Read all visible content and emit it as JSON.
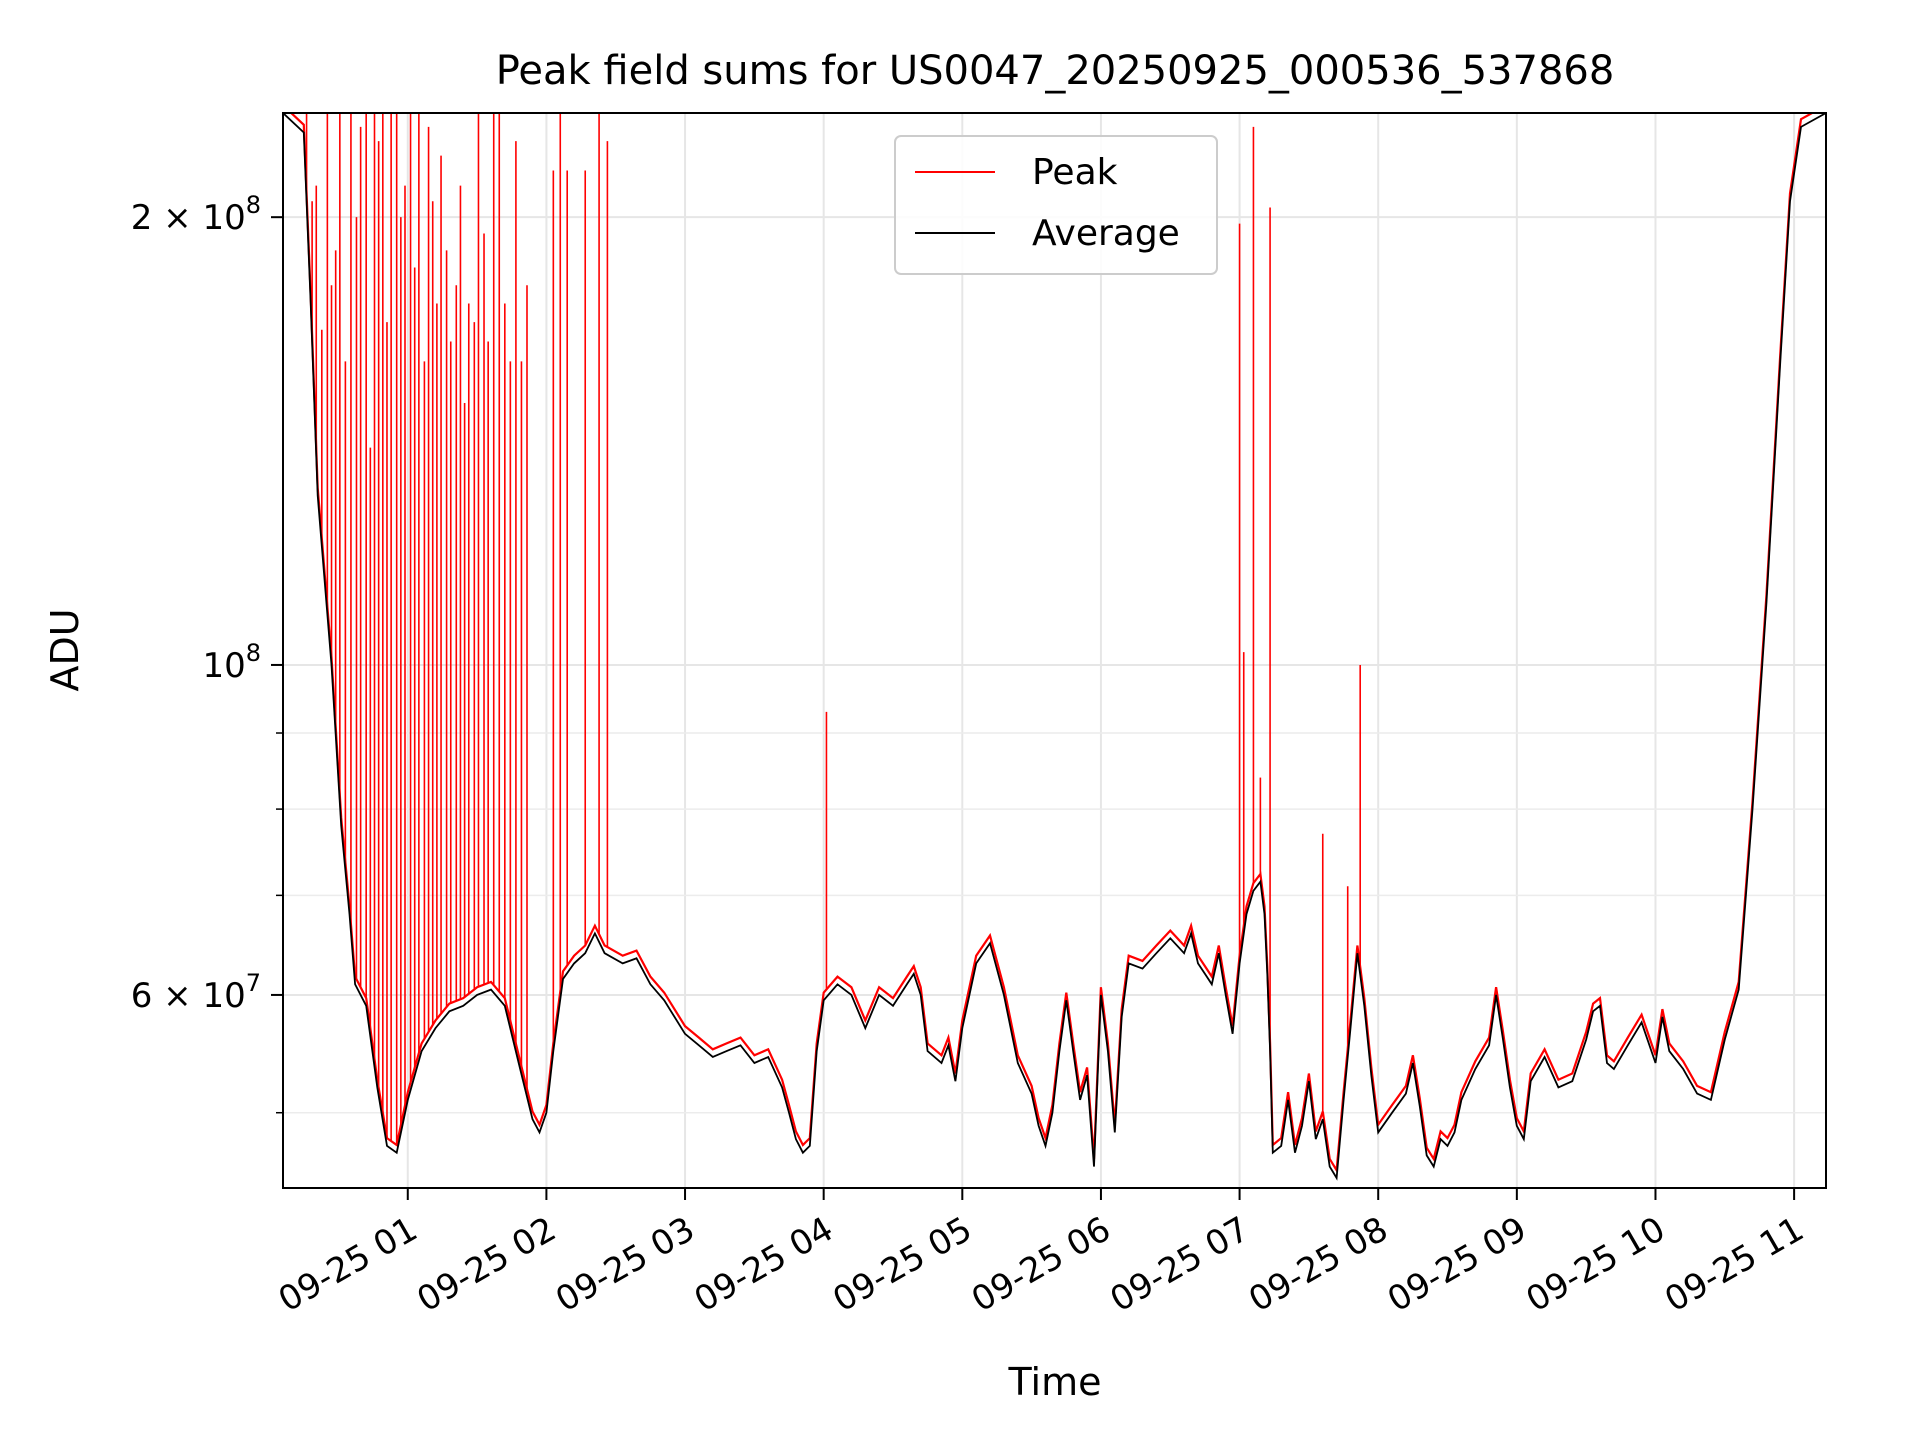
{
  "chart_data": {
    "type": "line",
    "title": "Peak field sums for US0047_20250925_000536_537868",
    "xlabel": "Time",
    "ylabel": "ADU",
    "yscale": "log",
    "ylim": [
      44500000,
      235000000
    ],
    "xlim_hours": [
      0.1,
      11.23
    ],
    "grid": true,
    "legend_position": "upper-center",
    "x_ticks": [
      {
        "hour": 1,
        "label": "09-25 01"
      },
      {
        "hour": 2,
        "label": "09-25 02"
      },
      {
        "hour": 3,
        "label": "09-25 03"
      },
      {
        "hour": 4,
        "label": "09-25 04"
      },
      {
        "hour": 5,
        "label": "09-25 05"
      },
      {
        "hour": 6,
        "label": "09-25 06"
      },
      {
        "hour": 7,
        "label": "09-25 07"
      },
      {
        "hour": 8,
        "label": "09-25 08"
      },
      {
        "hour": 9,
        "label": "09-25 09"
      },
      {
        "hour": 10,
        "label": "09-25 10"
      },
      {
        "hour": 11,
        "label": "09-25 11"
      }
    ],
    "y_major_ticks": [
      {
        "value": 60000000,
        "mantissa": "6",
        "exponent": "7"
      },
      {
        "value": 100000000,
        "mantissa": "",
        "exponent": "8"
      },
      {
        "value": 200000000,
        "mantissa": "2",
        "exponent": "8"
      }
    ],
    "y_minor_ticks": [
      50000000,
      70000000,
      80000000,
      90000000
    ],
    "series": [
      {
        "name": "Average",
        "color": "#000000",
        "points": [
          [
            0.1,
            235000000
          ],
          [
            0.25,
            228000000
          ],
          [
            0.3,
            175000000
          ],
          [
            0.35,
            130000000
          ],
          [
            0.45,
            100000000
          ],
          [
            0.52,
            78000000
          ],
          [
            0.58,
            68000000
          ],
          [
            0.62,
            61000000
          ],
          [
            0.7,
            59000000
          ],
          [
            0.78,
            52000000
          ],
          [
            0.85,
            47500000
          ],
          [
            0.92,
            47000000
          ],
          [
            1.0,
            51000000
          ],
          [
            1.1,
            55000000
          ],
          [
            1.2,
            57000000
          ],
          [
            1.3,
            58500000
          ],
          [
            1.4,
            59000000
          ],
          [
            1.5,
            60000000
          ],
          [
            1.6,
            60500000
          ],
          [
            1.7,
            59000000
          ],
          [
            1.8,
            54000000
          ],
          [
            1.9,
            49500000
          ],
          [
            1.95,
            48500000
          ],
          [
            2.0,
            50000000
          ],
          [
            2.05,
            55000000
          ],
          [
            2.12,
            61500000
          ],
          [
            2.2,
            63000000
          ],
          [
            2.28,
            64000000
          ],
          [
            2.35,
            66000000
          ],
          [
            2.42,
            64000000
          ],
          [
            2.55,
            63000000
          ],
          [
            2.65,
            63500000
          ],
          [
            2.75,
            61000000
          ],
          [
            2.85,
            59500000
          ],
          [
            3.0,
            56500000
          ],
          [
            3.1,
            55500000
          ],
          [
            3.2,
            54500000
          ],
          [
            3.3,
            55000000
          ],
          [
            3.4,
            55500000
          ],
          [
            3.5,
            54000000
          ],
          [
            3.6,
            54500000
          ],
          [
            3.7,
            52000000
          ],
          [
            3.75,
            50000000
          ],
          [
            3.8,
            48000000
          ],
          [
            3.85,
            47000000
          ],
          [
            3.9,
            47500000
          ],
          [
            3.95,
            55000000
          ],
          [
            4.0,
            59500000
          ],
          [
            4.1,
            61000000
          ],
          [
            4.2,
            60000000
          ],
          [
            4.3,
            57000000
          ],
          [
            4.4,
            60000000
          ],
          [
            4.5,
            59000000
          ],
          [
            4.6,
            61000000
          ],
          [
            4.65,
            62000000
          ],
          [
            4.7,
            60000000
          ],
          [
            4.75,
            55000000
          ],
          [
            4.85,
            54000000
          ],
          [
            4.9,
            55500000
          ],
          [
            4.95,
            52500000
          ],
          [
            5.0,
            57000000
          ],
          [
            5.1,
            63000000
          ],
          [
            5.2,
            65000000
          ],
          [
            5.3,
            60000000
          ],
          [
            5.4,
            54000000
          ],
          [
            5.5,
            51500000
          ],
          [
            5.55,
            49000000
          ],
          [
            5.6,
            47500000
          ],
          [
            5.65,
            50000000
          ],
          [
            5.7,
            55000000
          ],
          [
            5.75,
            59500000
          ],
          [
            5.8,
            55000000
          ],
          [
            5.85,
            51000000
          ],
          [
            5.9,
            53000000
          ],
          [
            5.95,
            46000000
          ],
          [
            6.0,
            60000000
          ],
          [
            6.05,
            55000000
          ],
          [
            6.1,
            48500000
          ],
          [
            6.15,
            58000000
          ],
          [
            6.2,
            63000000
          ],
          [
            6.3,
            62500000
          ],
          [
            6.4,
            64000000
          ],
          [
            6.5,
            65500000
          ],
          [
            6.6,
            64000000
          ],
          [
            6.65,
            66000000
          ],
          [
            6.7,
            63000000
          ],
          [
            6.75,
            62000000
          ],
          [
            6.8,
            61000000
          ],
          [
            6.85,
            64000000
          ],
          [
            6.9,
            60000000
          ],
          [
            6.95,
            56500000
          ],
          [
            7.0,
            63000000
          ],
          [
            7.05,
            68000000
          ],
          [
            7.1,
            70500000
          ],
          [
            7.15,
            71500000
          ],
          [
            7.18,
            68000000
          ],
          [
            7.2,
            62000000
          ],
          [
            7.22,
            55000000
          ],
          [
            7.24,
            47000000
          ],
          [
            7.3,
            47500000
          ],
          [
            7.35,
            51000000
          ],
          [
            7.4,
            47000000
          ],
          [
            7.45,
            49000000
          ],
          [
            7.5,
            52500000
          ],
          [
            7.55,
            48000000
          ],
          [
            7.6,
            49500000
          ],
          [
            7.65,
            46000000
          ],
          [
            7.7,
            45200000
          ],
          [
            7.75,
            51000000
          ],
          [
            7.8,
            57000000
          ],
          [
            7.85,
            64000000
          ],
          [
            7.9,
            59000000
          ],
          [
            7.95,
            53000000
          ],
          [
            8.0,
            48500000
          ],
          [
            8.1,
            50000000
          ],
          [
            8.2,
            51500000
          ],
          [
            8.25,
            54000000
          ],
          [
            8.3,
            50500000
          ],
          [
            8.35,
            46800000
          ],
          [
            8.4,
            46000000
          ],
          [
            8.45,
            48000000
          ],
          [
            8.5,
            47500000
          ],
          [
            8.55,
            48500000
          ],
          [
            8.6,
            51000000
          ],
          [
            8.7,
            53500000
          ],
          [
            8.8,
            55500000
          ],
          [
            8.85,
            60000000
          ],
          [
            8.9,
            56000000
          ],
          [
            8.95,
            52000000
          ],
          [
            9.0,
            49000000
          ],
          [
            9.05,
            48000000
          ],
          [
            9.1,
            52500000
          ],
          [
            9.2,
            54500000
          ],
          [
            9.3,
            52000000
          ],
          [
            9.4,
            52500000
          ],
          [
            9.5,
            56000000
          ],
          [
            9.55,
            58500000
          ],
          [
            9.6,
            59000000
          ],
          [
            9.65,
            54000000
          ],
          [
            9.7,
            53500000
          ],
          [
            9.8,
            55500000
          ],
          [
            9.9,
            57500000
          ],
          [
            10.0,
            54000000
          ],
          [
            10.05,
            58000000
          ],
          [
            10.1,
            55000000
          ],
          [
            10.2,
            53500000
          ],
          [
            10.3,
            51500000
          ],
          [
            10.4,
            51000000
          ],
          [
            10.5,
            56000000
          ],
          [
            10.6,
            60500000
          ],
          [
            10.7,
            80000000
          ],
          [
            10.8,
            110000000
          ],
          [
            10.9,
            160000000
          ],
          [
            10.97,
            205000000
          ],
          [
            11.05,
            230000000
          ],
          [
            11.23,
            235000000
          ]
        ]
      },
      {
        "name": "Peak",
        "color": "#ff0000",
        "offset_factor": 1.012,
        "spikes": [
          [
            0.27,
            235000000
          ],
          [
            0.31,
            205000000
          ],
          [
            0.34,
            210000000
          ],
          [
            0.38,
            168000000
          ],
          [
            0.42,
            235000000
          ],
          [
            0.45,
            180000000
          ],
          [
            0.48,
            190000000
          ],
          [
            0.51,
            235000000
          ],
          [
            0.55,
            160000000
          ],
          [
            0.59,
            235000000
          ],
          [
            0.63,
            200000000
          ],
          [
            0.66,
            230000000
          ],
          [
            0.7,
            235000000
          ],
          [
            0.73,
            140000000
          ],
          [
            0.76,
            235000000
          ],
          [
            0.79,
            225000000
          ],
          [
            0.82,
            235000000
          ],
          [
            0.85,
            170000000
          ],
          [
            0.88,
            235000000
          ],
          [
            0.92,
            235000000
          ],
          [
            0.95,
            200000000
          ],
          [
            0.98,
            210000000
          ],
          [
            1.02,
            235000000
          ],
          [
            1.05,
            185000000
          ],
          [
            1.08,
            235000000
          ],
          [
            1.12,
            160000000
          ],
          [
            1.15,
            230000000
          ],
          [
            1.18,
            205000000
          ],
          [
            1.21,
            175000000
          ],
          [
            1.24,
            220000000
          ],
          [
            1.28,
            190000000
          ],
          [
            1.31,
            165000000
          ],
          [
            1.35,
            180000000
          ],
          [
            1.38,
            210000000
          ],
          [
            1.41,
            150000000
          ],
          [
            1.44,
            175000000
          ],
          [
            1.48,
            170000000
          ],
          [
            1.51,
            235000000
          ],
          [
            1.55,
            195000000
          ],
          [
            1.58,
            165000000
          ],
          [
            1.62,
            235000000
          ],
          [
            1.66,
            235000000
          ],
          [
            1.7,
            175000000
          ],
          [
            1.74,
            160000000
          ],
          [
            1.78,
            225000000
          ],
          [
            1.82,
            160000000
          ],
          [
            1.86,
            180000000
          ],
          [
            2.05,
            215000000
          ],
          [
            2.1,
            235000000
          ],
          [
            2.15,
            215000000
          ],
          [
            2.28,
            215000000
          ],
          [
            2.38,
            235000000
          ],
          [
            2.44,
            225000000
          ],
          [
            4.02,
            93000000
          ],
          [
            7.0,
            198000000
          ],
          [
            7.03,
            102000000
          ],
          [
            7.1,
            230000000
          ],
          [
            7.15,
            84000000
          ],
          [
            7.22,
            203000000
          ],
          [
            7.6,
            77000000
          ],
          [
            7.78,
            71000000
          ],
          [
            7.87,
            100000000
          ]
        ]
      }
    ]
  }
}
